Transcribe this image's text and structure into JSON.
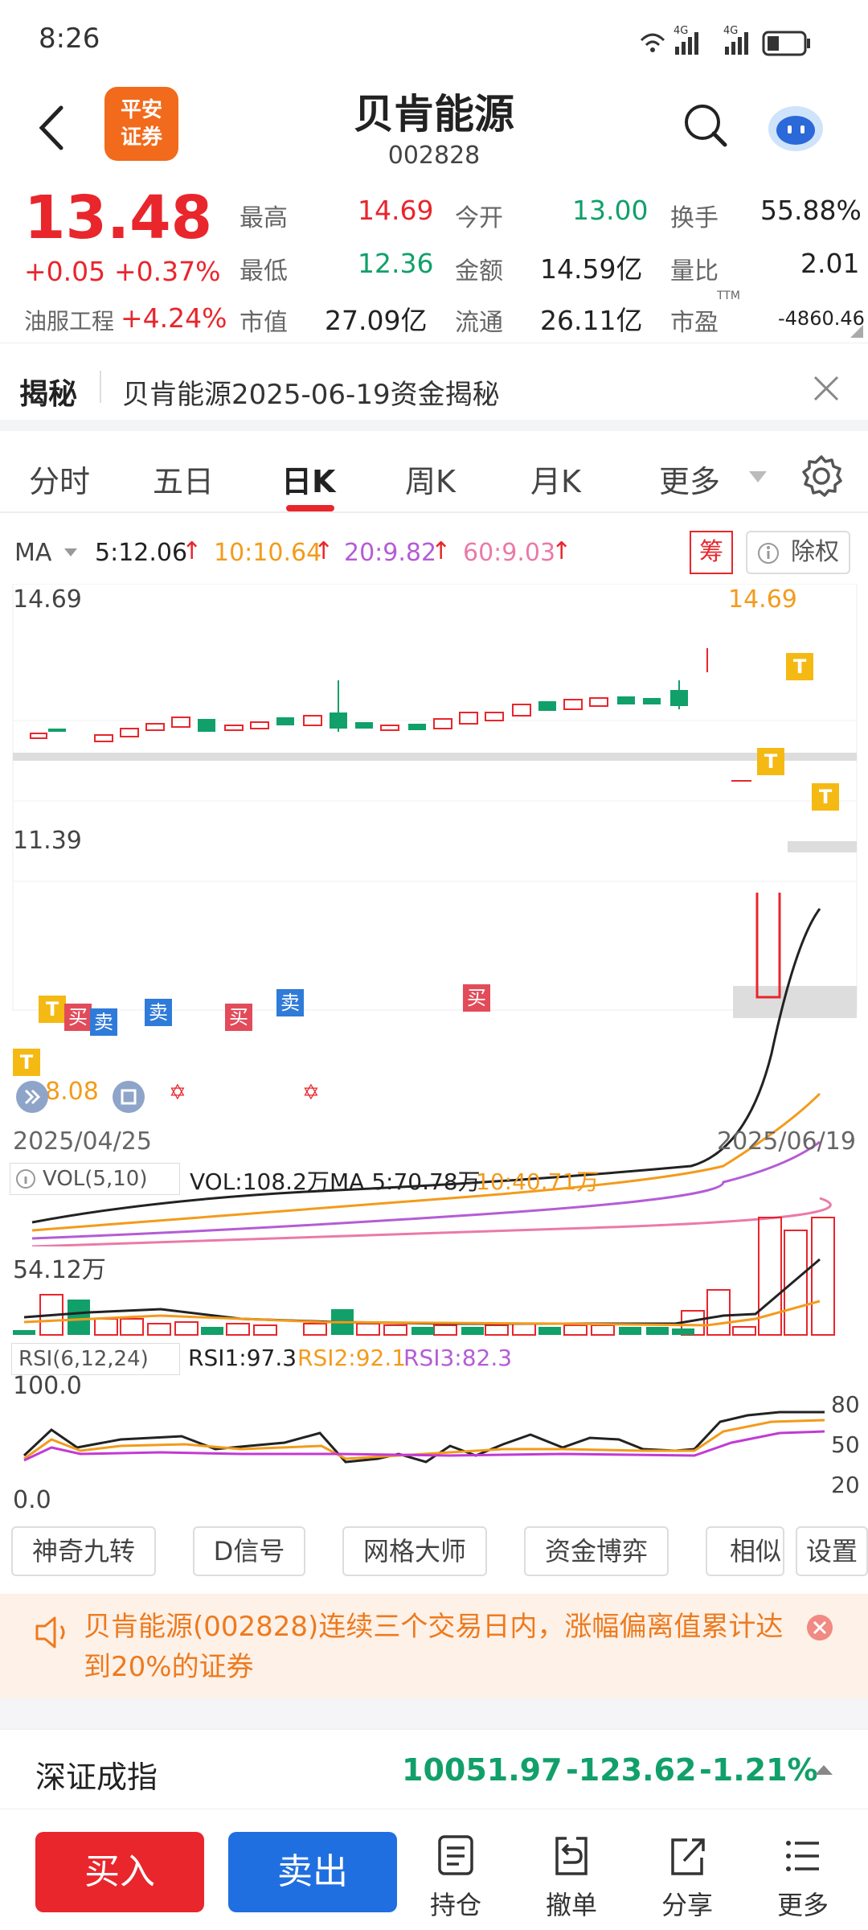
{
  "status": {
    "time": "8:26",
    "signal1": "4G",
    "signal2": "4G"
  },
  "header": {
    "logo_line1": "平安",
    "logo_line2": "证券",
    "title": "贝肯能源",
    "code": "002828"
  },
  "quote": {
    "price": "13.48",
    "change": "+0.05",
    "change_pct": "+0.37%",
    "sector": "油服工程",
    "sector_pct": "+4.24%",
    "cells": [
      {
        "label": "最高",
        "value": "14.69"
      },
      {
        "label": "今开",
        "value": "13.00"
      },
      {
        "label": "换手",
        "value": "55.88%"
      },
      {
        "label": "最低",
        "value": "12.36"
      },
      {
        "label": "金额",
        "value": "14.59亿"
      },
      {
        "label": "量比",
        "value": "2.01"
      },
      {
        "label": "市值",
        "value": "27.09亿"
      },
      {
        "label": "流通",
        "value": "26.11亿"
      },
      {
        "label": "市盈",
        "value": "-4860.46"
      }
    ],
    "ttm": "TTM"
  },
  "reveal": {
    "tag": "揭秘",
    "text": "贝肯能源2025-06-19资金揭秘"
  },
  "tabs": [
    "分时",
    "五日",
    "日K",
    "周K",
    "月K",
    "更多"
  ],
  "ma": {
    "label": "MA",
    "ma5": "5:12.06",
    "ma10": "10:10.64",
    "ma20": "20:9.82",
    "ma60": "60:9.03",
    "chou": "筹",
    "chuquan": "除权"
  },
  "kline": {
    "high_label": "14.69",
    "mid_label": "11.39",
    "low_label": "8.08",
    "max_marker": "14.69",
    "date_start": "2025/04/25",
    "date_end": "2025/06/19",
    "markers": {
      "t": "T",
      "buy": "买",
      "sell": "卖"
    }
  },
  "vol": {
    "label": "VOL(5,10)",
    "value": "VOL:108.2万",
    "ma5": "MA 5:70.78万",
    "ma10": "10:40.71万",
    "axis": "54.12万"
  },
  "rsi": {
    "label": "RSI(6,12,24)",
    "rsi1": "RSI1:97.3",
    "rsi2": "RSI2:92.1",
    "rsi3": "RSI3:82.3",
    "top": "100.0",
    "bottom": "0.0",
    "r80": "80",
    "r50": "50",
    "r20": "20"
  },
  "tools": [
    "神奇九转",
    "D信号",
    "网格大师",
    "资金博弈",
    "相似K",
    "设置"
  ],
  "notice": {
    "text": "贝肯能源(002828)连续三个交易日内，涨幅偏离值累计达到20%的证券"
  },
  "index": {
    "name": "深证成指",
    "value": "10051.97",
    "change": "-123.62",
    "pct": "-1.21%"
  },
  "bottom": {
    "buy": "买入",
    "sell": "卖出",
    "hold": "持仓",
    "cancel": "撤单",
    "share": "分享",
    "more": "更多"
  },
  "colors": {
    "up": "#e8262c",
    "down": "#11a06a",
    "ma5": "#222222",
    "ma10": "#f39b1b",
    "ma20": "#b45cd6",
    "ma60": "#ea7aa8",
    "buy_btn": "#e8262c",
    "sell_btn": "#1f6fe0"
  }
}
